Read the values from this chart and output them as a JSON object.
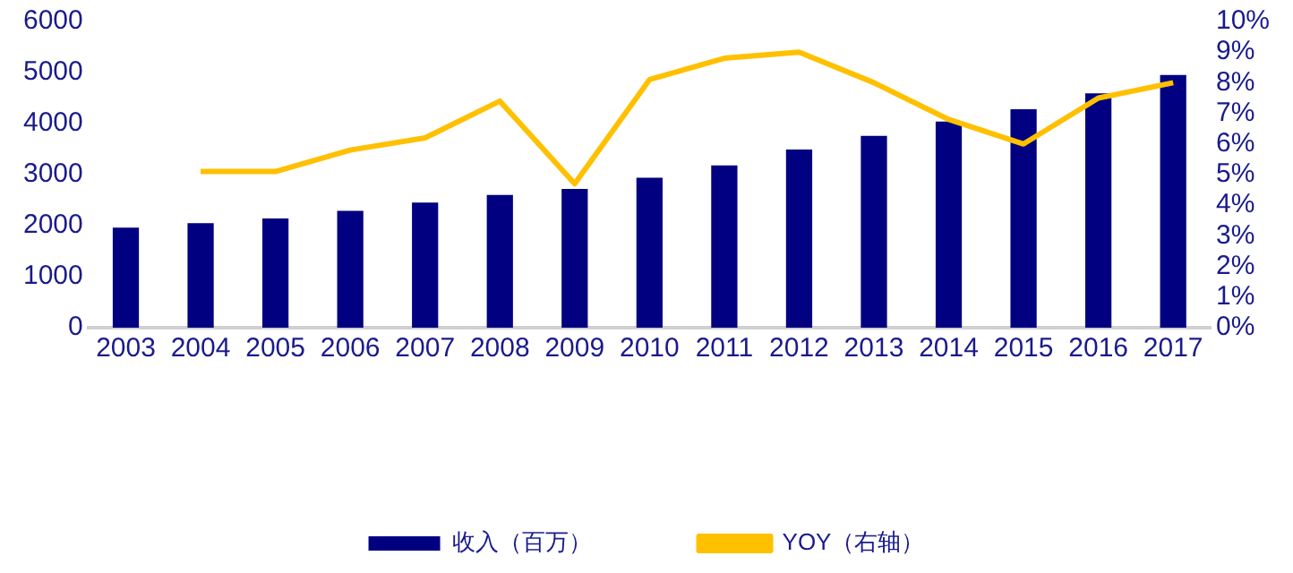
{
  "chart_data": {
    "type": "bar",
    "categories": [
      "2003",
      "2004",
      "2005",
      "2006",
      "2007",
      "2008",
      "2009",
      "2010",
      "2011",
      "2012",
      "2013",
      "2014",
      "2015",
      "2016",
      "2017"
    ],
    "series": [
      {
        "name": "收入（百万）",
        "color": "#000080",
        "values": [
          1960,
          2050,
          2140,
          2290,
          2450,
          2600,
          2720,
          2940,
          3180,
          3490,
          3760,
          4040,
          4280,
          4590,
          4950
        ]
      },
      {
        "name": "YOY（右轴）",
        "type": "line",
        "axis": "y2",
        "color": "#ffc000",
        "values": [
          null,
          5.1,
          5.1,
          5.8,
          6.2,
          7.4,
          4.7,
          8.1,
          8.8,
          9.0,
          8.0,
          6.8,
          6.0,
          7.5,
          8.0
        ]
      }
    ],
    "ylim": [
      0,
      6000
    ],
    "yticks": [
      0,
      1000,
      2000,
      3000,
      4000,
      5000,
      6000
    ],
    "y2lim": [
      0,
      10
    ],
    "y2ticks": [
      {
        "value": 0,
        "label": "0%"
      },
      {
        "value": 1,
        "label": "1%"
      },
      {
        "value": 2,
        "label": "2%"
      },
      {
        "value": 3,
        "label": "3%"
      },
      {
        "value": 4,
        "label": "4%"
      },
      {
        "value": 5,
        "label": "5%"
      },
      {
        "value": 6,
        "label": "6%"
      },
      {
        "value": 7,
        "label": "7%"
      },
      {
        "value": 8,
        "label": "8%"
      },
      {
        "value": 9,
        "label": "9%"
      },
      {
        "value": 10,
        "label": "10%"
      }
    ],
    "grid": false,
    "legend": "bottom",
    "marker": "none"
  }
}
